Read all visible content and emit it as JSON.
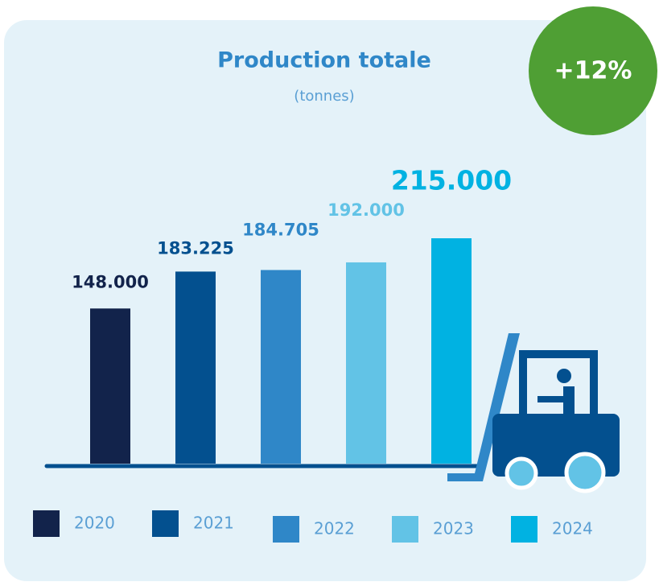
{
  "chart_data": {
    "type": "bar",
    "title": "Production totale",
    "subtitle": "(tonnes)",
    "annotation": "+12%",
    "categories": [
      "2020",
      "2021",
      "2022",
      "2023",
      "2024"
    ],
    "values": [
      148000,
      183225,
      184705,
      192000,
      215000
    ],
    "value_labels": [
      "148.000",
      "183.225",
      "184.705",
      "192.000",
      "215.000"
    ],
    "colors": [
      "#12234b",
      "#03508f",
      "#2f87c8",
      "#62c3e6",
      "#00b2e2"
    ]
  }
}
